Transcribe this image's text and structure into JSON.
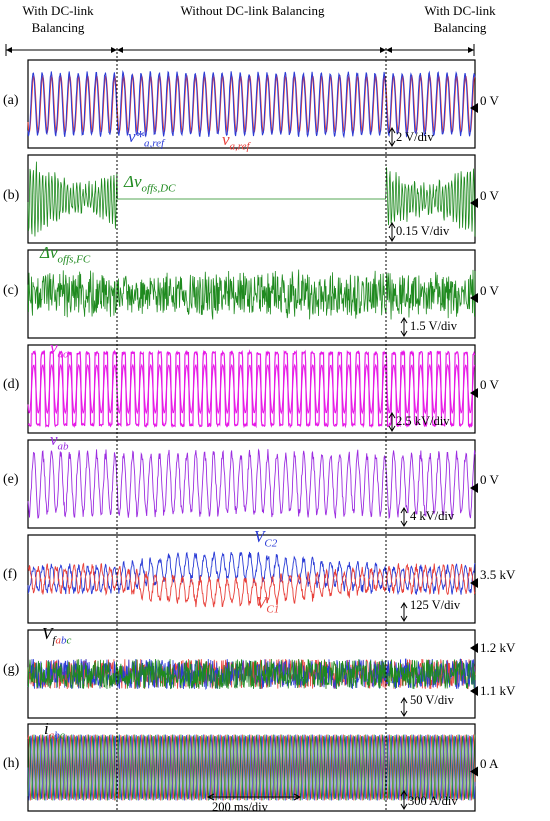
{
  "header": {
    "left": "With DC-link Balancing",
    "middle": "Without DC-link Balancing",
    "right": "With DC-link Balancing"
  },
  "time_scale": "200 ms/div",
  "colors": {
    "blue": "#2a3bd6",
    "red": "#e8403a",
    "green": "#1f8a1f",
    "magenta": "#e619e6",
    "purple": "#9b2ce0"
  },
  "chart_data": [
    {
      "type": "line",
      "panel": "(a)",
      "signals": [
        "v*a,ref",
        "va,ref"
      ],
      "zero_marker": "0 V",
      "scale": "2 V/div"
    },
    {
      "type": "line",
      "panel": "(b)",
      "signals": [
        "Δvoffs,DC"
      ],
      "zero_marker": "0 V",
      "scale": "0.15 V/div"
    },
    {
      "type": "line",
      "panel": "(c)",
      "signals": [
        "Δvoffs,FC"
      ],
      "zero_marker": "0 V",
      "scale": "1.5 V/div"
    },
    {
      "type": "line",
      "panel": "(d)",
      "signals": [
        "vao"
      ],
      "zero_marker": "0 V",
      "scale": "2.5 kV/div"
    },
    {
      "type": "line",
      "panel": "(e)",
      "signals": [
        "vab"
      ],
      "zero_marker": "0 V",
      "scale": "4 kV/div"
    },
    {
      "type": "line",
      "panel": "(f)",
      "signals": [
        "VC2",
        "VC1"
      ],
      "zero_marker": "3.5 kV",
      "scale": "125 V/div"
    },
    {
      "type": "line",
      "panel": "(g)",
      "signals": [
        "Vfabc"
      ],
      "markers": [
        "1.2 kV",
        "1.1 kV"
      ],
      "scale": "50 V/div"
    },
    {
      "type": "line",
      "panel": "(h)",
      "signals": [
        "iabc"
      ],
      "zero_marker": "0 A",
      "scale": "300 A/div"
    }
  ],
  "labels": {
    "a1": "v*",
    "a1sub": "a,ref",
    "a2": "v",
    "a2sub": "a,ref",
    "b1": "Δv",
    "b1sub": "offs,DC",
    "c1": "Δv",
    "c1sub": "offs,FC",
    "d1": "v",
    "d1sub": "ao",
    "e1": "v",
    "e1sub": "ab",
    "f1": "V",
    "f1sub": "C2",
    "f2": "V",
    "f2sub": "C1",
    "g1": "V",
    "g1sub": "f",
    "g_a": "a",
    "g_b": "b",
    "g_c": "c",
    "h1": "i",
    "h_a": "a",
    "h_b": "b",
    "h_c": "c"
  }
}
